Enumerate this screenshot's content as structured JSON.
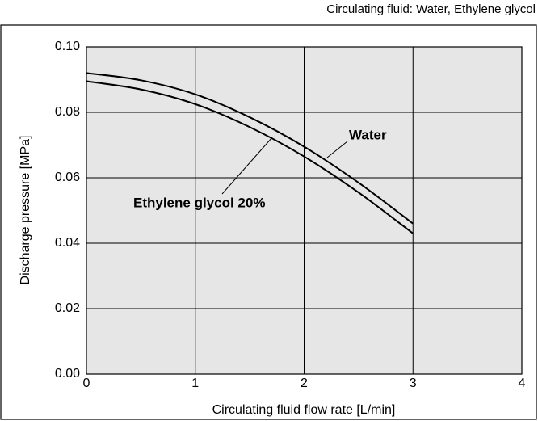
{
  "chart_data": {
    "type": "line",
    "subtitle": "Circulating fluid: Water, Ethylene glycol",
    "x_label": "Circulating fluid flow rate [L/min]",
    "y_label": "Discharge pressure [MPa]",
    "x": [
      0,
      0.5,
      1,
      1.5,
      2,
      2.5,
      3
    ],
    "series": [
      {
        "name": "Water",
        "color": "#000000",
        "values": [
          0.092,
          0.0898,
          0.0855,
          0.0785,
          0.0695,
          0.0585,
          0.046
        ]
      },
      {
        "name": "Ethylene glycol 20%",
        "color": "#000000",
        "values": [
          0.0895,
          0.087,
          0.0825,
          0.0755,
          0.0665,
          0.0555,
          0.043
        ]
      }
    ],
    "xlim": [
      0,
      4
    ],
    "ylim": [
      0,
      0.1
    ],
    "xticks": [
      0,
      1,
      2,
      3,
      4
    ],
    "yticks": [
      {
        "value": 0,
        "label": "0.00"
      },
      0.02,
      0.04,
      0.06,
      0.08,
      {
        "value": 0.1,
        "label": "0.10"
      }
    ],
    "grid": true
  }
}
